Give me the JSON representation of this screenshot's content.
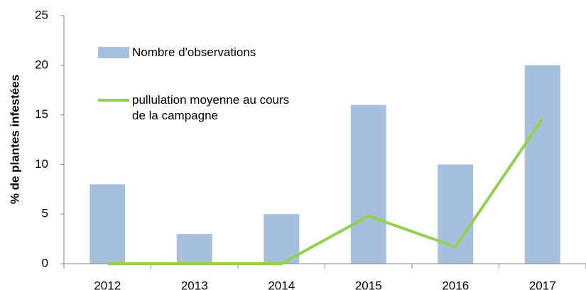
{
  "chart_data": {
    "type": "bar",
    "y_label": "% de plantes infestées",
    "categories": [
      "2012",
      "2013",
      "2014",
      "2015",
      "2016",
      "2017"
    ],
    "series": [
      {
        "name": "Nombre d'observations",
        "type": "bar",
        "color": "#a6bfdd",
        "values": [
          8,
          3,
          5,
          16,
          10,
          20
        ]
      },
      {
        "name": "pullulation moyenne au cours de la campagne",
        "type": "line",
        "color": "#92d050",
        "values": [
          0,
          0,
          0,
          4.8,
          1.7,
          14.6
        ]
      }
    ],
    "ylim": [
      0,
      25
    ],
    "yticks": [
      0,
      5,
      10,
      15,
      20,
      25
    ],
    "grid": false,
    "legend": "top-left"
  }
}
